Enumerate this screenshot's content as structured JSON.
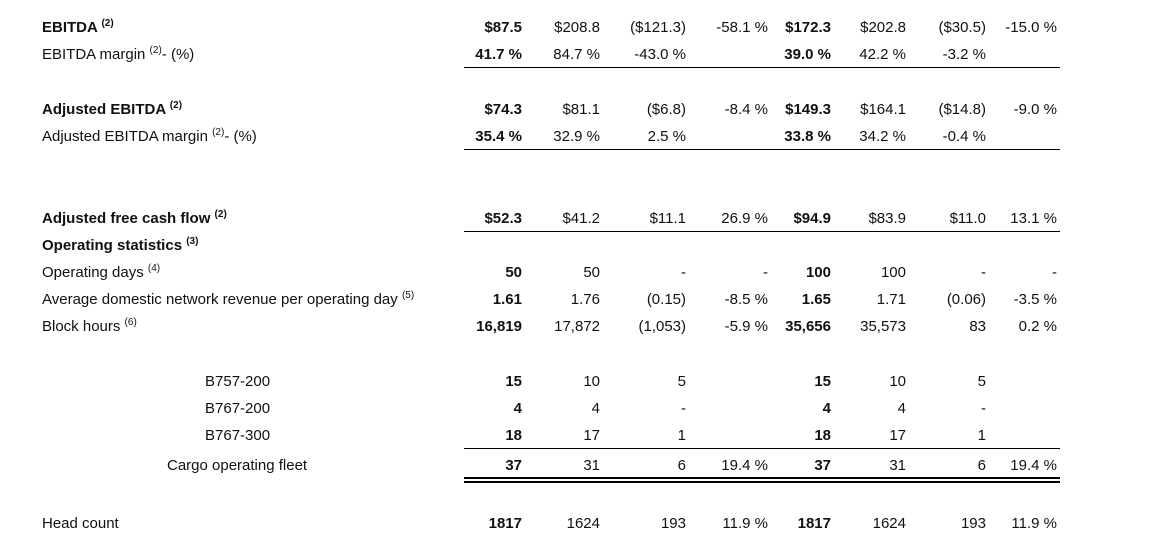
{
  "rows": [
    {
      "label": "EBITDA",
      "sup": "(2)",
      "suffix": "",
      "bold": true,
      "values": [
        "$87.5",
        "$208.8",
        "($121.3)",
        "-58.1 %",
        "$172.3",
        "$202.8",
        "($30.5)",
        "-15.0 %"
      ]
    },
    {
      "label": "EBITDA margin ",
      "sup": "(2)",
      "suffix": "- (%)",
      "bold": false,
      "values": [
        "41.7 %",
        "84.7 %",
        "-43.0 %",
        "",
        "39.0 %",
        "42.2 %",
        "-3.2 %",
        ""
      ]
    },
    {
      "label": "Adjusted EBITDA",
      "sup": "(2)",
      "suffix": "",
      "bold": true,
      "values": [
        "$74.3",
        "$81.1",
        "($6.8)",
        "-8.4 %",
        "$149.3",
        "$164.1",
        "($14.8)",
        "-9.0 %"
      ]
    },
    {
      "label": "Adjusted EBITDA margin ",
      "sup": "(2)",
      "suffix": "- (%)",
      "bold": false,
      "values": [
        "35.4 %",
        "32.9 %",
        "2.5 %",
        "",
        "33.8 %",
        "34.2 %",
        "-0.4 %",
        ""
      ]
    },
    {
      "label": "Adjusted free cash flow",
      "sup": "(2)",
      "suffix": "",
      "bold": true,
      "values": [
        "$52.3",
        "$41.2",
        "$11.1",
        "26.9 %",
        "$94.9",
        "$83.9",
        "$11.0",
        "13.1 %"
      ]
    },
    {
      "label": "Operating statistics",
      "sup": "(3)",
      "suffix": "",
      "bold": true,
      "values": [
        "",
        "",
        "",
        "",
        "",
        "",
        "",
        ""
      ]
    },
    {
      "label": "Operating days ",
      "sup": "(4)",
      "suffix": "",
      "bold": false,
      "values": [
        "50",
        "50",
        "-",
        "-",
        "100",
        "100",
        "-",
        "-"
      ]
    },
    {
      "label": "Average domestic network revenue per operating day ",
      "sup": "(5)",
      "suffix": "",
      "bold": false,
      "values": [
        "1.61",
        "1.76",
        "(0.15)",
        "-8.5 %",
        "1.65",
        "1.71",
        "(0.06)",
        "-3.5 %"
      ]
    },
    {
      "label": "Block hours ",
      "sup": "(6)",
      "suffix": "",
      "bold": false,
      "values": [
        "16,819",
        "17,872",
        "(1,053)",
        "-5.9 %",
        "35,656",
        "35,573",
        "83",
        "0.2 %"
      ]
    },
    {
      "label": "B757-200",
      "sup": "",
      "suffix": "",
      "bold": false,
      "values": [
        "15",
        "10",
        "5",
        "",
        "15",
        "10",
        "5",
        ""
      ]
    },
    {
      "label": "B767-200",
      "sup": "",
      "suffix": "",
      "bold": false,
      "values": [
        "4",
        "4",
        "-",
        "",
        "4",
        "4",
        "-",
        ""
      ]
    },
    {
      "label": "B767-300",
      "sup": "",
      "suffix": "",
      "bold": false,
      "values": [
        "18",
        "17",
        "1",
        "",
        "18",
        "17",
        "1",
        ""
      ]
    },
    {
      "label": "Cargo operating fleet",
      "sup": "",
      "suffix": "",
      "bold": false,
      "values": [
        "37",
        "31",
        "6",
        "19.4 %",
        "37",
        "31",
        "6",
        "19.4 %"
      ]
    },
    {
      "label": "Head count",
      "sup": "",
      "suffix": "",
      "bold": false,
      "values": [
        "1817",
        "1624",
        "193",
        "11.9 %",
        "1817",
        "1624",
        "193",
        "11.9 %"
      ]
    }
  ]
}
